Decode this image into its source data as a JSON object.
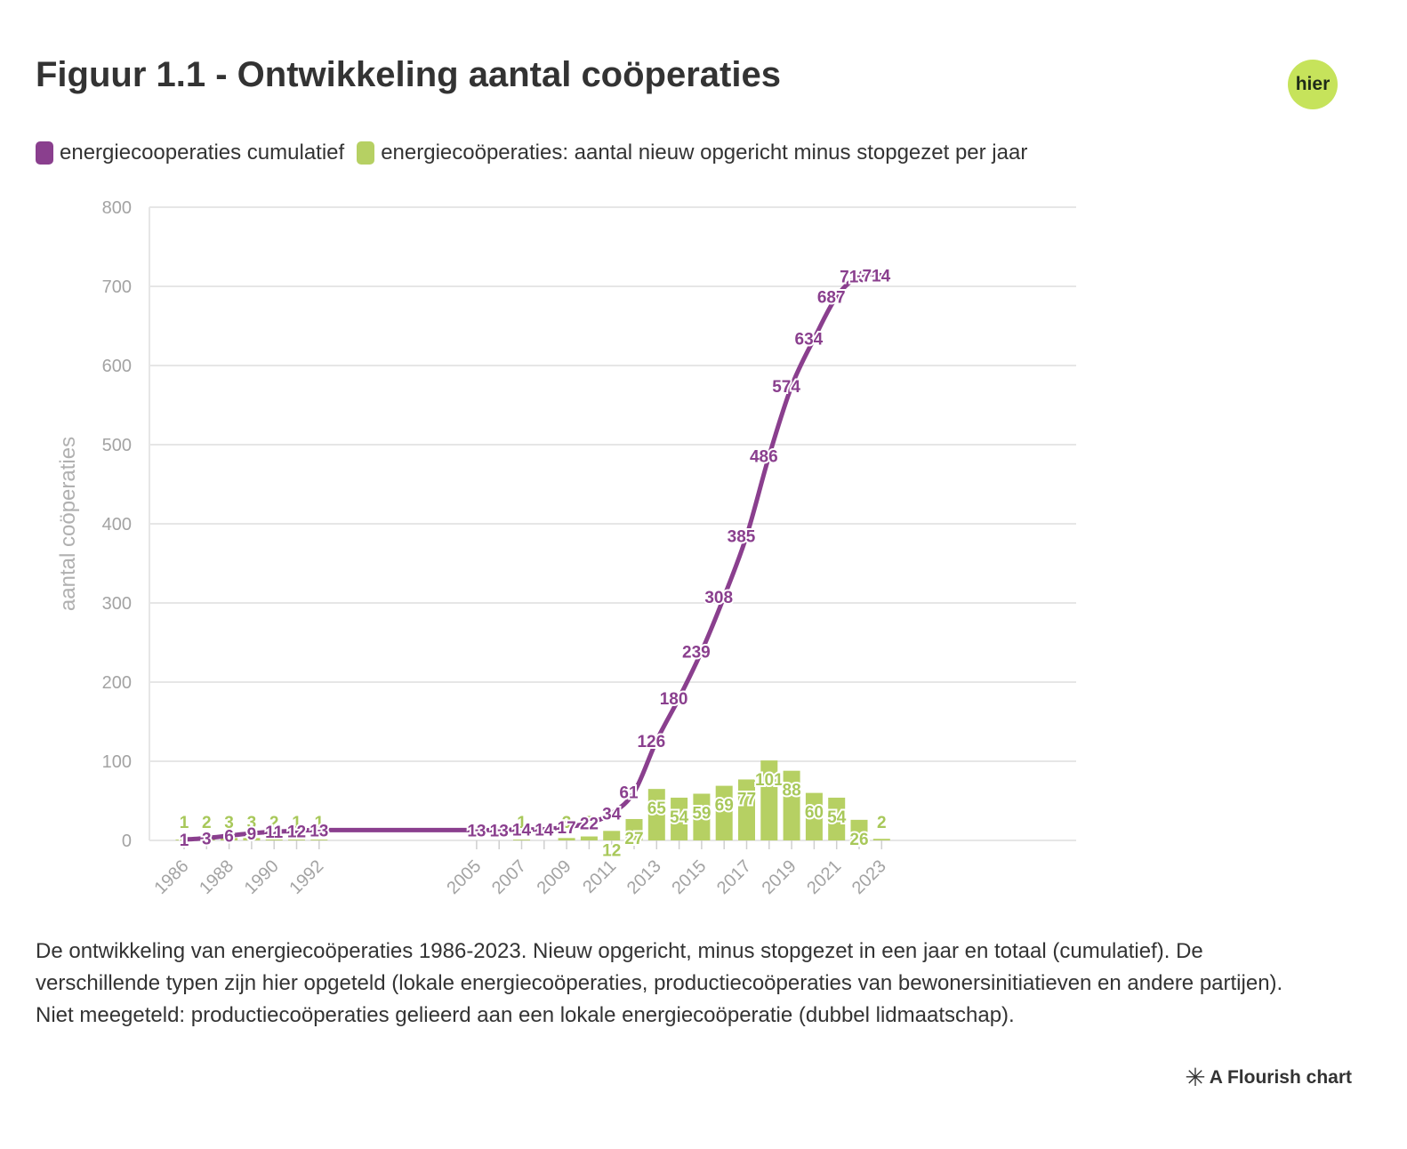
{
  "header": {
    "title": "Figuur 1.1 - Ontwikkeling aantal coöperaties",
    "logo_text": "hier",
    "logo_color": "#c6e35b"
  },
  "caption": "De ontwikkeling van energiecoöperaties 1986-2023. Nieuw opgericht, minus stopgezet in een jaar en totaal (cumulatief). De verschillende typen zijn hier opgeteld (lokale energiecoöperaties, productiecoöperaties van bewonersinitiatieven en andere partijen). Niet meegeteld: productiecoöperaties gelieerd aan een lokale energiecoöperatie (dubbel lidmaatschap).",
  "credit": {
    "icon": "asterisk-icon",
    "text": "A Flourish chart"
  },
  "chart_data": {
    "type": "bar",
    "title": "Figuur 1.1 - Ontwikkeling aantal coöperaties",
    "xlabel": "",
    "ylabel": "aantal coöperaties",
    "ylim": [
      0,
      800
    ],
    "yticks": [
      0,
      100,
      200,
      300,
      400,
      500,
      600,
      700,
      800
    ],
    "grid": true,
    "legend_position": "top-left",
    "x": [
      1986,
      1987,
      1988,
      1989,
      1990,
      1991,
      1992,
      2005,
      2006,
      2007,
      2008,
      2009,
      2010,
      2011,
      2012,
      2013,
      2014,
      2015,
      2016,
      2017,
      2018,
      2019,
      2020,
      2021,
      2022,
      2023
    ],
    "xtick_labels": [
      "1986",
      "1988",
      "1990",
      "1992",
      "2005",
      "2007",
      "2009",
      "2011",
      "2013",
      "2015",
      "2017",
      "2019",
      "2021",
      "2023"
    ],
    "series": [
      {
        "name": "energiecooperaties cumulatief",
        "kind": "line",
        "color": "#8a3f8e",
        "values": [
          1,
          3,
          6,
          9,
          11,
          12,
          13,
          13,
          13,
          14,
          14,
          17,
          22,
          34,
          61,
          126,
          180,
          239,
          308,
          385,
          486,
          574,
          634,
          687,
          713,
          714
        ],
        "labels": [
          "1",
          "3",
          "6",
          "9",
          "11",
          "12",
          "13",
          "13",
          "13",
          "14",
          "14",
          "17",
          "22",
          "34",
          "61",
          "126",
          "180",
          "239",
          "308",
          "385",
          "486",
          "574",
          "634",
          "687",
          "713",
          "714"
        ]
      },
      {
        "name": "energiecoöperaties: aantal nieuw opgericht minus stopgezet per jaar",
        "kind": "bar",
        "color": "#b6d063",
        "values": [
          1,
          2,
          3,
          3,
          2,
          1,
          1,
          0,
          0,
          1,
          0,
          3,
          5,
          12,
          27,
          65,
          54,
          59,
          69,
          77,
          101,
          88,
          60,
          54,
          26,
          2
        ],
        "labels": [
          "1",
          "2",
          "3",
          "3",
          "2",
          "1",
          "1",
          "",
          "",
          "1",
          "",
          "3",
          "5",
          "12",
          "27",
          "65",
          "54",
          "59",
          "69",
          "77",
          "101",
          "88",
          "60",
          "54",
          "26",
          "2"
        ]
      }
    ]
  }
}
